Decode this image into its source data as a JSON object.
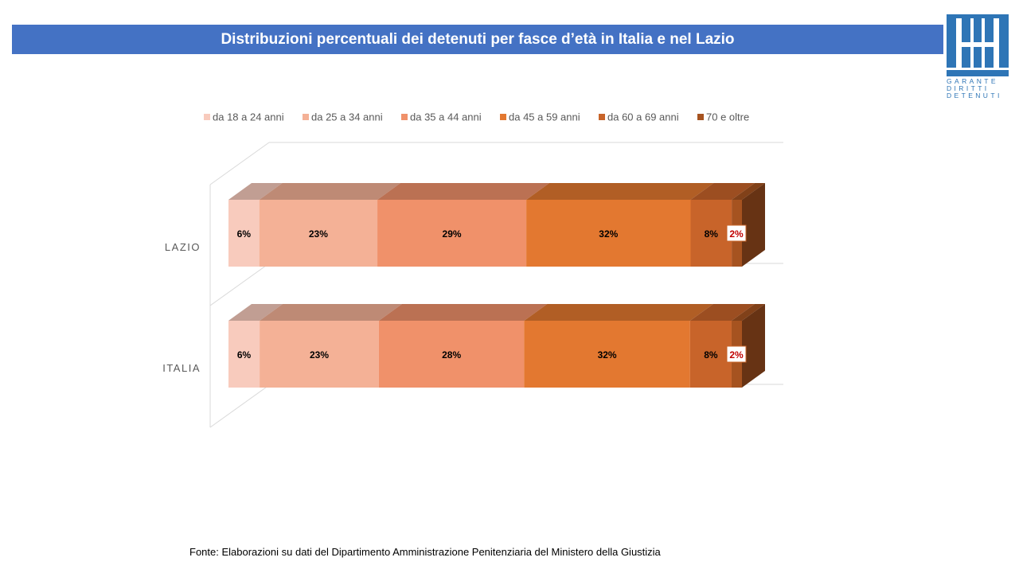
{
  "header": {
    "title": "Distribuzioni percentuali dei detenuti per fasce d’età in Italia e nel Lazio"
  },
  "logo": {
    "line1": "GARANTE",
    "line2": "DIRITTI",
    "line3": "DETENUTI",
    "color": "#2e75b6"
  },
  "footer": {
    "source": "Fonte:  Elaborazioni su dati del Dipartimento  Amministrazione Penitenziaria del Ministero della Giustizia"
  },
  "chart_data": {
    "type": "bar",
    "orientation": "horizontal",
    "stacked": "100%",
    "style": "3d",
    "categories": [
      "LAZIO",
      "ITALIA"
    ],
    "legend_position": "top",
    "series": [
      {
        "name": "da 18 a 24 anni",
        "color": "#f8cbbd",
        "values": [
          6,
          6
        ]
      },
      {
        "name": "da 25 a 34 anni",
        "color": "#f4b196",
        "values": [
          23,
          23
        ]
      },
      {
        "name": "da 35 a 44 anni",
        "color": "#f0916a",
        "values": [
          29,
          28
        ]
      },
      {
        "name": "da 45 a 59 anni",
        "color": "#e37830",
        "values": [
          32,
          32
        ]
      },
      {
        "name": "da 60 a 69 anni",
        "color": "#c8642a",
        "values": [
          8,
          8
        ]
      },
      {
        "name": "70 e oltre",
        "color": "#a65320",
        "values": [
          2,
          2
        ]
      }
    ],
    "data_labels": [
      [
        "6%",
        "23%",
        "29%",
        "32%",
        "8%",
        "2%"
      ],
      [
        "6%",
        "23%",
        "28%",
        "32%",
        "8%",
        "2%"
      ]
    ],
    "highlight_label_color": "#c00000"
  }
}
